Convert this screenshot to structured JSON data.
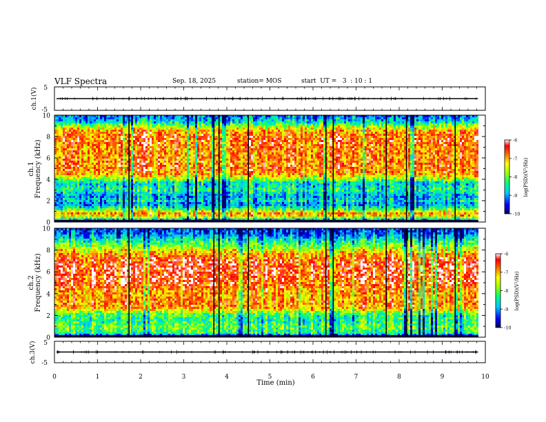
{
  "header": {
    "title": "VLF Spectra",
    "date": "Sep. 18, 2025",
    "station": "station= MOS",
    "start": "start  UT =   3  : 10 : 1"
  },
  "chart_data": [
    {
      "id": "ch1-waveform",
      "type": "line",
      "ylabel": "ch.1(V)",
      "ylim": [
        -5,
        5
      ],
      "y_ticks": [
        "5",
        "-5"
      ],
      "xlim": [
        0,
        10
      ],
      "baseline_value": 0,
      "data_extent_min": [
        0,
        9.83
      ]
    },
    {
      "id": "ch1-spectrogram",
      "type": "heatmap",
      "ylabel": [
        "ch.1",
        "Frequency  (kHz)"
      ],
      "ylim": [
        0,
        10
      ],
      "y_ticks": [
        "0",
        "2",
        "4",
        "6",
        "8",
        "10"
      ],
      "xlim": [
        0,
        10
      ],
      "data_extent_min": [
        0,
        9.83
      ],
      "freq_profile_khz": [
        0.0,
        0.5,
        0.8,
        1.2,
        1.7,
        2.0,
        2.4,
        3.0,
        3.6,
        4.0,
        4.5,
        5.0,
        6.0,
        7.0,
        7.6,
        8.5,
        9.0,
        9.4,
        10.0
      ],
      "freq_profile_level": [
        -10,
        -7.3,
        -6.8,
        -8.2,
        -9.1,
        -8.6,
        -9.0,
        -8.3,
        -8.8,
        -7.8,
        -7.0,
        -6.7,
        -6.8,
        -6.8,
        -6.6,
        -6.9,
        -7.8,
        -8.7,
        -9.2
      ],
      "colorbar": {
        "label": "log(PSD)(V²/Hz)",
        "ticks": [
          "-6",
          "-7",
          "-8",
          "-9",
          "-10"
        ],
        "range": [
          -10,
          -6
        ]
      }
    },
    {
      "id": "ch2-spectrogram",
      "type": "heatmap",
      "ylabel": [
        "ch.2",
        "Frequency  (kHz)"
      ],
      "ylim": [
        0,
        10
      ],
      "y_ticks": [
        "0",
        "2",
        "4",
        "6",
        "8",
        "10"
      ],
      "xlim": [
        0,
        10
      ],
      "data_extent_min": [
        0,
        9.83
      ],
      "freq_profile_khz": [
        0.0,
        0.4,
        1.0,
        1.5,
        2.0,
        2.3,
        2.6,
        3.0,
        4.0,
        5.0,
        6.0,
        7.0,
        7.6,
        8.0,
        8.5,
        9.0,
        9.5,
        10.0
      ],
      "freq_profile_level": [
        -10,
        -8.3,
        -8.0,
        -8.4,
        -8.2,
        -7.8,
        -7.1,
        -6.8,
        -7.0,
        -6.5,
        -6.4,
        -6.5,
        -6.9,
        -7.4,
        -8.0,
        -8.6,
        -9.2,
        -9.5
      ],
      "colorbar": {
        "label": "log(PSD)(V²/Hz)",
        "ticks": [
          "-6",
          "-7",
          "-8",
          "-9",
          "-10"
        ],
        "range": [
          -10,
          -6
        ]
      }
    },
    {
      "id": "ch3-waveform",
      "type": "line",
      "ylabel": "ch.3(V)",
      "ylim": [
        -5,
        5
      ],
      "y_ticks": [
        "5",
        "-5"
      ],
      "xlim": [
        0,
        10
      ],
      "baseline_value": 0,
      "data_extent_min": [
        0,
        9.83
      ]
    }
  ],
  "x_axis": {
    "label": "Time  (min)",
    "ticks": [
      "0",
      "1",
      "2",
      "3",
      "4",
      "5",
      "6",
      "7",
      "8",
      "9",
      "10"
    ]
  },
  "dark_gap_minutes": [
    6.3,
    6.47,
    7.7,
    8.17,
    9.3,
    3.7,
    3.82,
    4.5,
    1.73
  ]
}
